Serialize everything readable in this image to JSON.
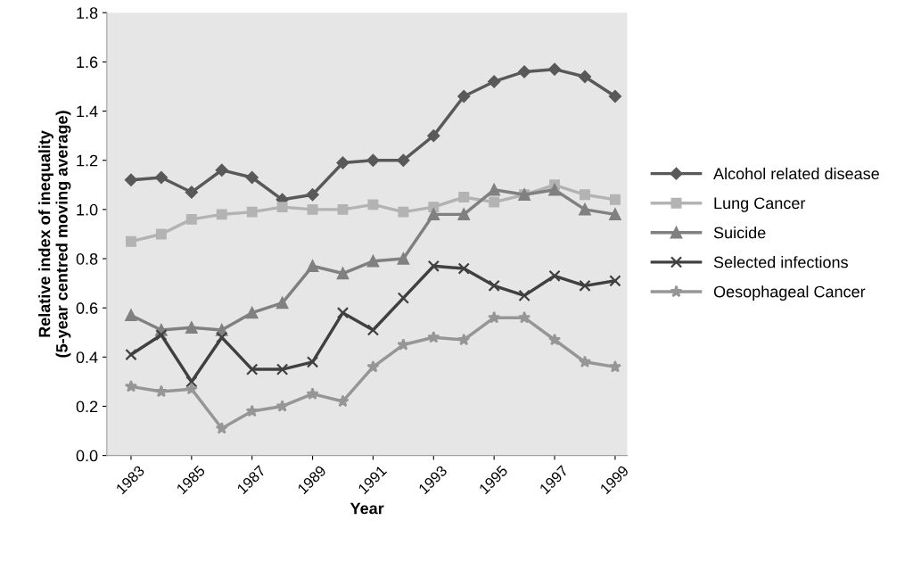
{
  "chart_data": {
    "type": "line",
    "xlabel": "Year",
    "ylabel": "Relative index of inequality\n(5-year centred moving average)",
    "x": [
      1983,
      1984,
      1985,
      1986,
      1987,
      1988,
      1989,
      1990,
      1991,
      1992,
      1993,
      1994,
      1995,
      1996,
      1997,
      1998,
      1999
    ],
    "xlim": [
      1982.2,
      1999.4
    ],
    "xticks": [
      1983,
      1985,
      1987,
      1989,
      1991,
      1993,
      1995,
      1997,
      1999
    ],
    "ylim": [
      0,
      1.8
    ],
    "yticks": [
      {
        "value": 0,
        "label": "0.0"
      },
      {
        "value": 0.2,
        "label": "0.2"
      },
      {
        "value": 0.4,
        "label": "0.4"
      },
      {
        "value": 0.6,
        "label": "0.6"
      },
      {
        "value": 0.8,
        "label": "0.8"
      },
      {
        "value": 1.0,
        "label": "1.0"
      },
      {
        "value": 1.2,
        "label": "1.2"
      },
      {
        "value": 1.4,
        "label": "1.4"
      },
      {
        "value": 1.6,
        "label": "1.6"
      },
      {
        "value": 1.8,
        "label": "1.8"
      }
    ],
    "grid": false,
    "legend": "right",
    "series": [
      {
        "name": "Alcohol related disease",
        "color": "#595959",
        "marker": "diamond",
        "values": [
          1.12,
          1.13,
          1.07,
          1.16,
          1.13,
          1.04,
          1.06,
          1.19,
          1.2,
          1.2,
          1.3,
          1.46,
          1.52,
          1.56,
          1.57,
          1.54,
          1.46
        ]
      },
      {
        "name": "Lung Cancer",
        "color": "#b3b3b3",
        "marker": "square",
        "values": [
          0.87,
          0.9,
          0.96,
          0.98,
          0.99,
          1.01,
          1.0,
          1.0,
          1.02,
          0.99,
          1.01,
          1.05,
          1.03,
          1.06,
          1.1,
          1.06,
          1.04
        ]
      },
      {
        "name": "Suicide",
        "color": "#808080",
        "marker": "triangle",
        "values": [
          0.57,
          0.51,
          0.52,
          0.51,
          0.58,
          0.62,
          0.77,
          0.74,
          0.79,
          0.8,
          0.98,
          0.98,
          1.08,
          1.06,
          1.08,
          1.0,
          0.98
        ]
      },
      {
        "name": "Selected infections",
        "color": "#404040",
        "marker": "cross",
        "values": [
          0.41,
          0.49,
          0.3,
          0.48,
          0.35,
          0.35,
          0.38,
          0.58,
          0.51,
          0.64,
          0.77,
          0.76,
          0.69,
          0.65,
          0.73,
          0.69,
          0.71
        ]
      },
      {
        "name": "Oesophageal Cancer",
        "color": "#969696",
        "marker": "star",
        "values": [
          0.28,
          0.26,
          0.27,
          0.11,
          0.18,
          0.2,
          0.25,
          0.22,
          0.36,
          0.45,
          0.48,
          0.47,
          0.56,
          0.56,
          0.47,
          0.38,
          0.36
        ]
      }
    ]
  }
}
